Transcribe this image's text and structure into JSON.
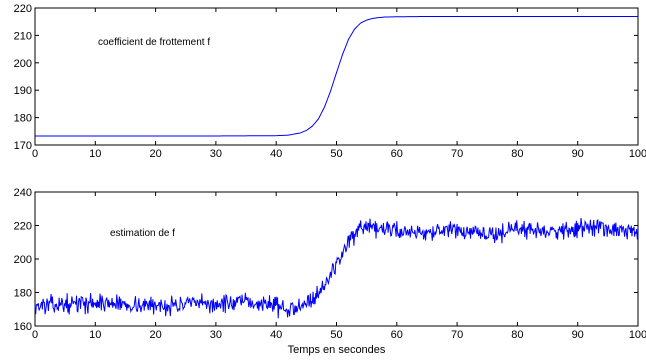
{
  "chart_data": [
    {
      "type": "line",
      "title": "",
      "annotation": "coefficient de frottement f",
      "xlabel": "",
      "ylabel": "",
      "xlim": [
        0,
        100
      ],
      "ylim": [
        170,
        220
      ],
      "xticks": [
        0,
        10,
        20,
        30,
        40,
        50,
        60,
        70,
        80,
        90,
        100
      ],
      "yticks": [
        170,
        180,
        190,
        200,
        210,
        220
      ],
      "grid": false,
      "color": "#0000ff",
      "series": [
        {
          "x": [
            0,
            10,
            20,
            30,
            40,
            42,
            44,
            45,
            46,
            47,
            48,
            49,
            50,
            51,
            52,
            53,
            54,
            55,
            56,
            57,
            58,
            60,
            65,
            70,
            80,
            90,
            100
          ],
          "values": [
            173.3,
            173.3,
            173.3,
            173.3,
            173.4,
            173.6,
            174.4,
            175.3,
            176.9,
            179.5,
            183.8,
            189.6,
            196.4,
            203.0,
            208.6,
            212.3,
            214.5,
            215.6,
            216.2,
            216.5,
            216.7,
            216.8,
            216.9,
            216.9,
            216.9,
            216.9,
            216.9
          ]
        }
      ]
    },
    {
      "type": "line",
      "title": "",
      "annotation": "estimation de  f",
      "xlabel": "Temps en secondes",
      "ylabel": "",
      "xlim": [
        0,
        100
      ],
      "ylim": [
        160,
        240
      ],
      "xticks": [
        0,
        10,
        20,
        30,
        40,
        50,
        60,
        70,
        80,
        90,
        100
      ],
      "yticks": [
        160,
        180,
        200,
        220,
        240
      ],
      "grid": false,
      "color": "#0000ff",
      "series": [
        {
          "x": [
            0,
            5,
            10,
            15,
            20,
            25,
            30,
            35,
            40,
            42,
            44,
            46,
            48,
            50,
            52,
            54,
            56,
            58,
            60,
            65,
            70,
            75,
            80,
            85,
            90,
            93,
            95,
            100
          ],
          "values": [
            172,
            173,
            174,
            173,
            172,
            173,
            173,
            174,
            173,
            168,
            174,
            176,
            184,
            197,
            211,
            217,
            218,
            218,
            217,
            216,
            217,
            214,
            218,
            217,
            218,
            220,
            217,
            216
          ]
        }
      ]
    }
  ]
}
